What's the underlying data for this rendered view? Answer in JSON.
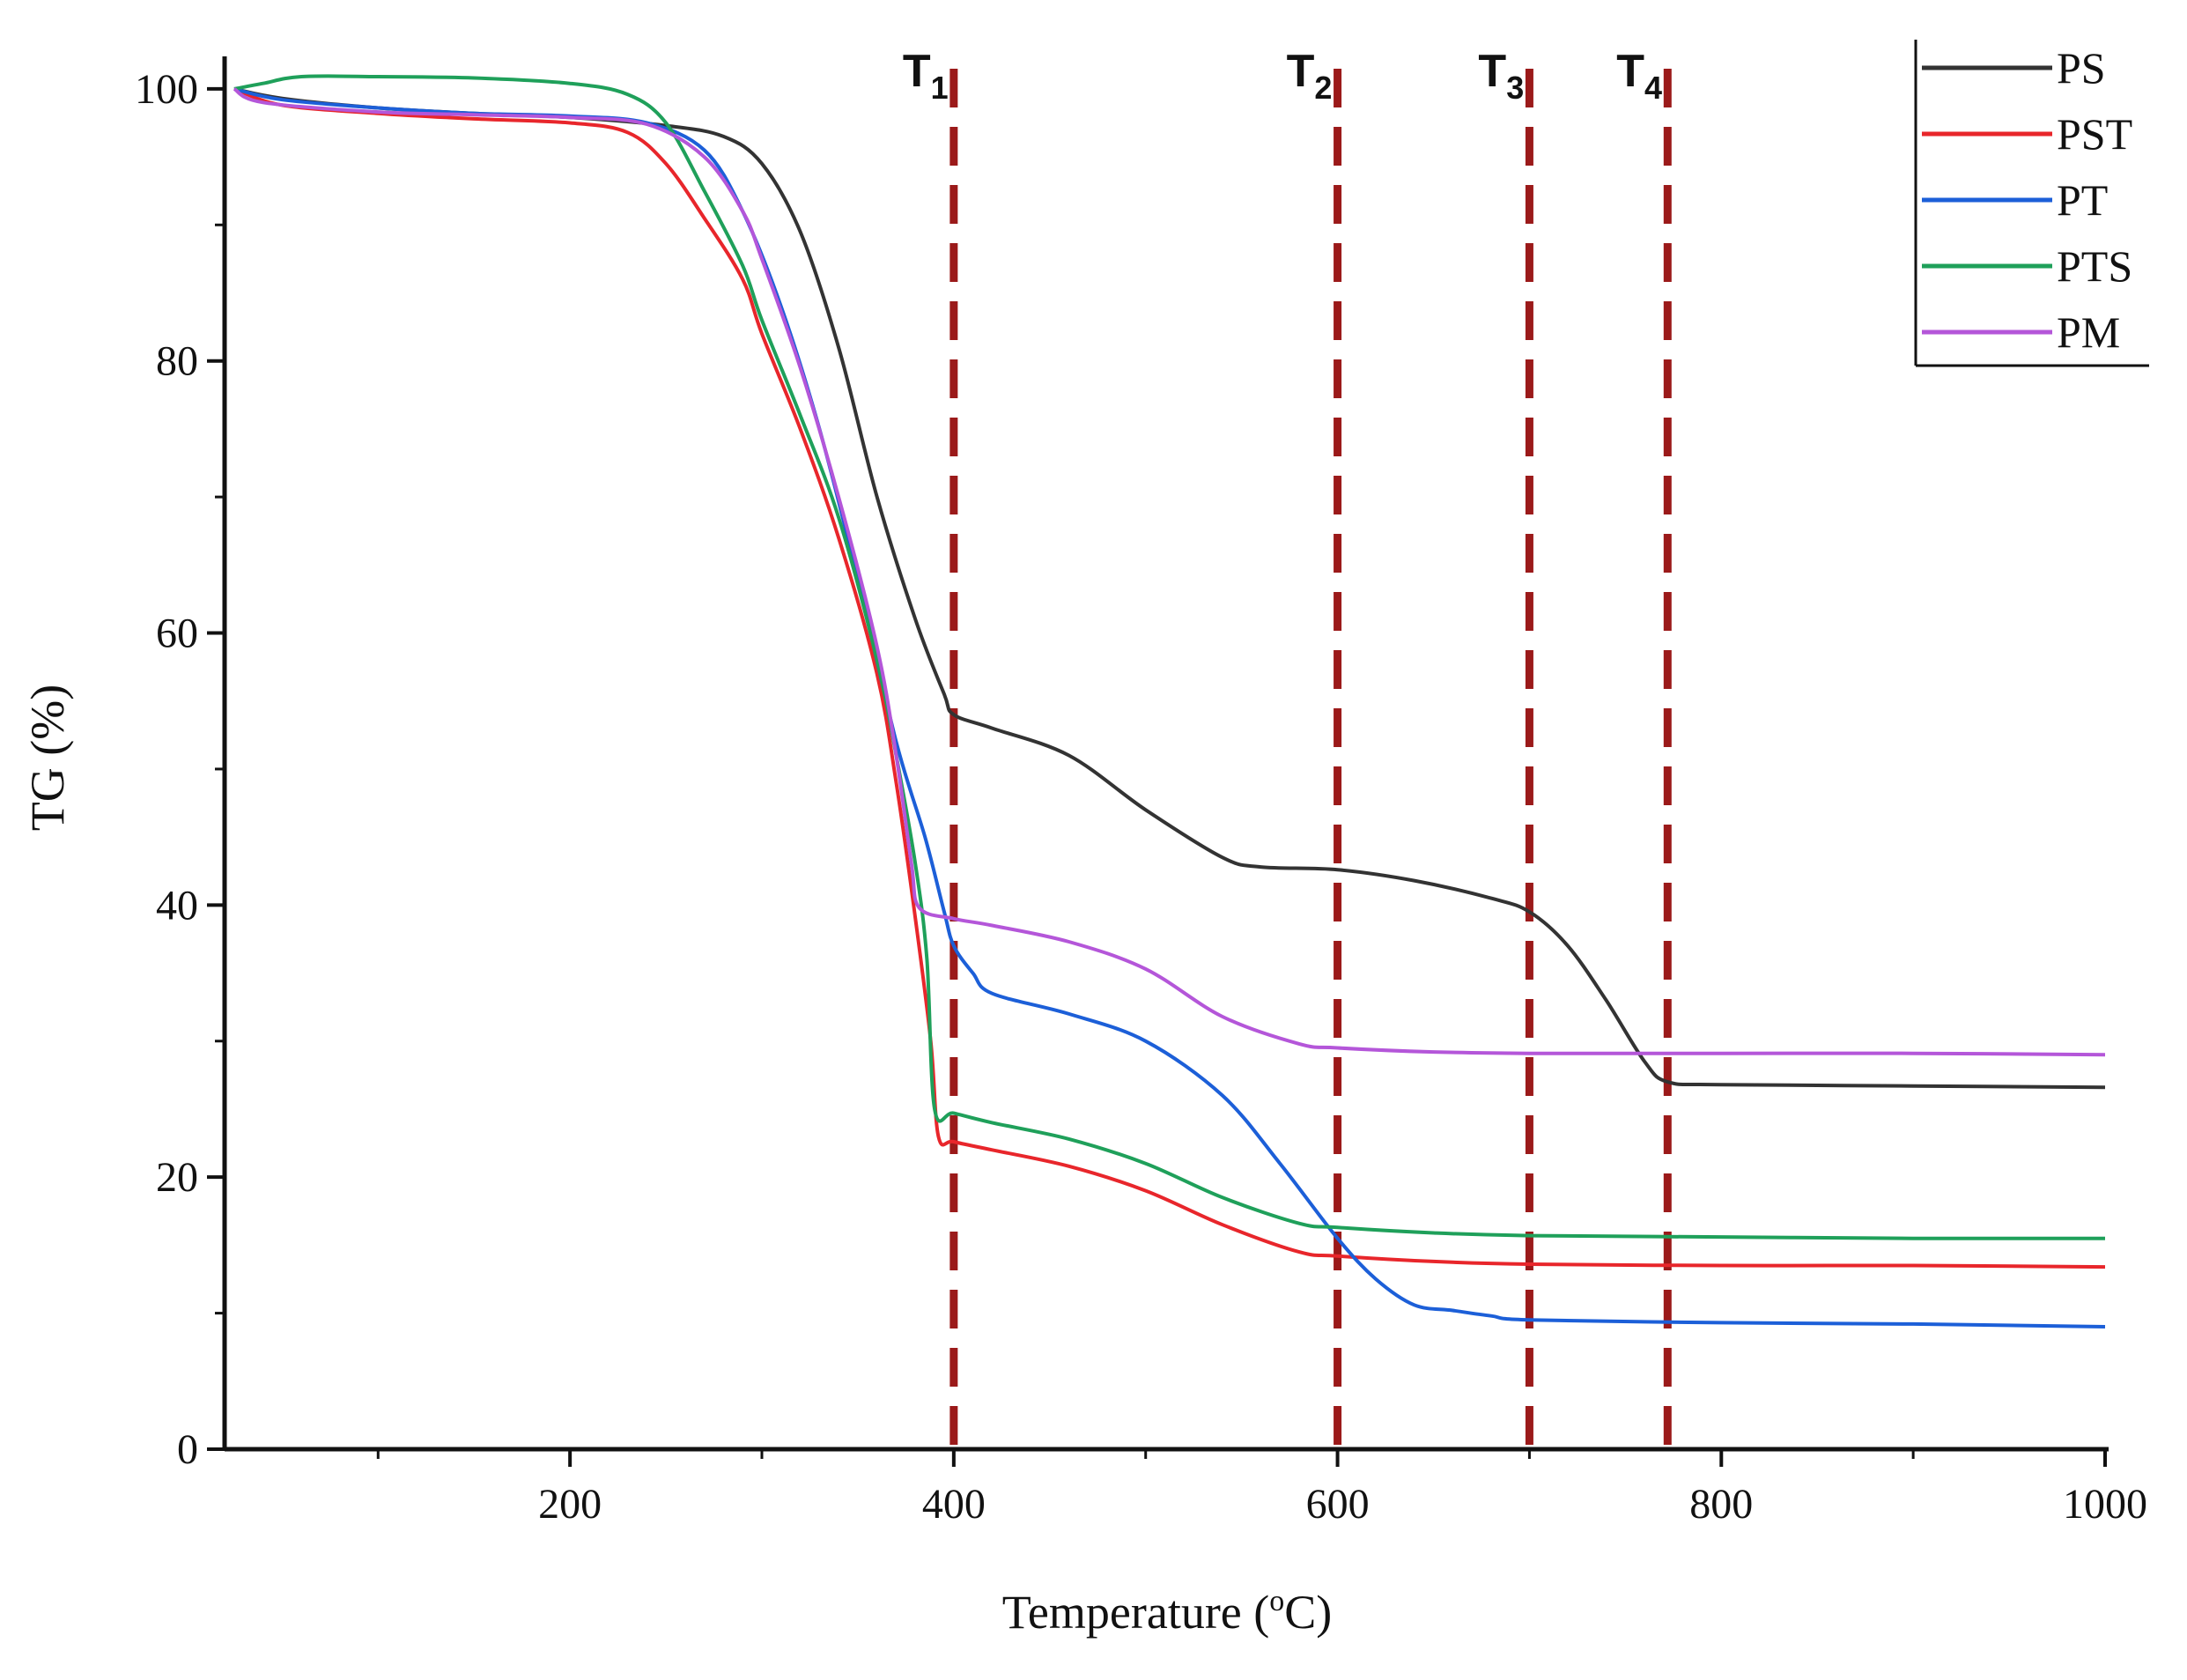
{
  "chart_data": {
    "type": "line",
    "xlabel_main": "Temperature (",
    "xlabel_sup": "o",
    "xlabel_end": "C)",
    "ylabel": "TG (%)",
    "xlim": [
      20,
      1000
    ],
    "ylim": [
      0,
      102
    ],
    "xticks": [
      200,
      400,
      600,
      800,
      1000
    ],
    "xtick_labels": [
      "200",
      "400",
      "600",
      "800",
      "1000"
    ],
    "yticks": [
      0,
      20,
      40,
      60,
      80,
      100
    ],
    "ytick_labels": [
      "0",
      "20",
      "40",
      "60",
      "80",
      "100"
    ],
    "grid": false,
    "legend_position": "top-right",
    "markers": [
      {
        "letter": "T",
        "sub": "1",
        "x": 400,
        "color": "#9b1a1a"
      },
      {
        "letter": "T",
        "sub": "2",
        "x": 600,
        "color": "#9b1a1a"
      },
      {
        "letter": "T",
        "sub": "3",
        "x": 700,
        "color": "#9b1a1a"
      },
      {
        "letter": "T",
        "sub": "4",
        "x": 772,
        "color": "#9b1a1a"
      }
    ],
    "series": [
      {
        "name": "PS",
        "color": "#333333",
        "x": [
          25,
          50,
          100,
          150,
          200,
          250,
          280,
          300,
          320,
          340,
          360,
          380,
          395,
          400,
          420,
          460,
          500,
          540,
          560,
          600,
          640,
          680,
          700,
          720,
          740,
          760,
          772,
          800,
          900,
          1000
        ],
        "y": [
          100,
          99.3,
          98.6,
          98.2,
          97.9,
          97.3,
          96.5,
          94.5,
          89.5,
          81,
          70,
          61,
          55.5,
          54,
          53,
          51,
          47,
          43.5,
          42.8,
          42.6,
          41.8,
          40.5,
          39.5,
          37,
          33,
          28.5,
          27,
          26.8,
          26.7,
          26.6
        ]
      },
      {
        "name": "PST",
        "color": "#e8262b",
        "x": [
          25,
          50,
          100,
          150,
          200,
          230,
          250,
          270,
          290,
          300,
          320,
          340,
          360,
          370,
          380,
          388,
          392,
          400,
          420,
          460,
          500,
          540,
          580,
          600,
          650,
          700,
          800,
          900,
          1000
        ],
        "y": [
          100,
          98.8,
          98.2,
          97.8,
          97.5,
          96.8,
          94.5,
          90.5,
          86,
          82,
          75,
          67,
          57,
          49,
          39,
          30,
          23,
          22.6,
          22,
          20.8,
          19,
          16.5,
          14.5,
          14.2,
          13.8,
          13.6,
          13.5,
          13.5,
          13.4
        ]
      },
      {
        "name": "PT",
        "color": "#1c5fd8",
        "x": [
          25,
          50,
          100,
          150,
          200,
          240,
          270,
          290,
          310,
          330,
          350,
          370,
          385,
          395,
          400,
          410,
          420,
          460,
          500,
          540,
          570,
          600,
          620,
          640,
          660,
          680,
          700,
          800,
          900,
          1000
        ],
        "y": [
          100,
          99.2,
          98.6,
          98.2,
          98,
          97.5,
          95.5,
          91,
          84,
          75,
          64,
          52,
          45,
          39.5,
          37,
          35,
          33.5,
          32,
          30,
          26,
          21,
          15.5,
          12.5,
          10.6,
          10.2,
          9.8,
          9.5,
          9.3,
          9.2,
          9.0
        ]
      },
      {
        "name": "PTS",
        "color": "#1fa05a",
        "x": [
          25,
          40,
          60,
          100,
          150,
          200,
          230,
          250,
          270,
          290,
          300,
          320,
          340,
          360,
          370,
          380,
          386,
          390,
          400,
          420,
          460,
          500,
          540,
          580,
          600,
          650,
          700,
          800,
          900,
          1000
        ],
        "y": [
          100,
          100.4,
          100.9,
          100.9,
          100.8,
          100.4,
          99.6,
          97.5,
          92.5,
          87,
          83,
          76,
          68.5,
          58,
          51,
          43,
          36,
          25,
          24.7,
          24,
          22.8,
          21,
          18.5,
          16.6,
          16.3,
          15.9,
          15.7,
          15.6,
          15.5,
          15.5
        ]
      },
      {
        "name": "PM",
        "color": "#b456d9",
        "x": [
          25,
          40,
          100,
          150,
          200,
          240,
          270,
          290,
          300,
          320,
          340,
          360,
          370,
          378,
          382,
          400,
          420,
          460,
          500,
          540,
          580,
          600,
          650,
          700,
          800,
          900,
          1000
        ],
        "y": [
          100,
          99.0,
          98.3,
          98.1,
          97.9,
          97.4,
          95,
          91,
          87.5,
          79.5,
          70,
          59,
          51,
          43,
          39.8,
          39,
          38.5,
          37.3,
          35.3,
          31.8,
          29.8,
          29.5,
          29.2,
          29.1,
          29.1,
          29.1,
          29.0
        ]
      }
    ]
  }
}
